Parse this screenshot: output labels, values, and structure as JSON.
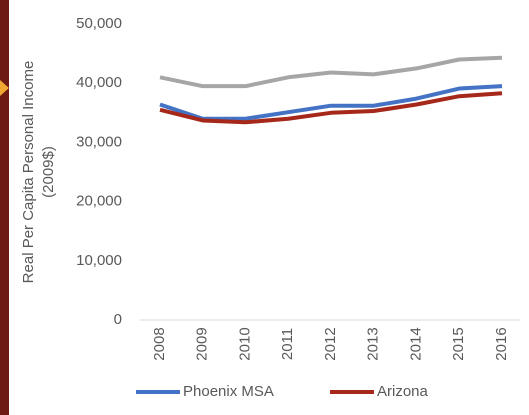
{
  "chart_data": {
    "type": "line",
    "y_label": "Real Per Capita Personal Income (2009$)",
    "x": [
      "2008",
      "2009",
      "2010",
      "2011",
      "2012",
      "2013",
      "2014",
      "2015",
      "2016"
    ],
    "series": [
      {
        "color": "#a6a6a6",
        "values": [
          41000,
          39500,
          39500,
          41000,
          41800,
          41500,
          42500,
          44000,
          44300
        ]
      },
      {
        "name": "Phoenix MSA",
        "color": "#4472c4",
        "values": [
          36400,
          34000,
          34000,
          35100,
          36200,
          36200,
          37400,
          39100,
          39500
        ]
      },
      {
        "name": "Arizona",
        "color": "#a5281b",
        "values": [
          35500,
          33700,
          33400,
          34000,
          35000,
          35300,
          36400,
          37800,
          38300
        ]
      }
    ],
    "ylim": [
      0,
      50000
    ],
    "yticks": [
      0,
      {
        "value": 10000,
        "label": "10,000"
      },
      {
        "value": 20000,
        "label": "20,000"
      },
      {
        "value": 30000,
        "label": "30,000"
      },
      {
        "value": 40000,
        "label": "40,000"
      },
      {
        "value": 50000,
        "label": "50,000"
      }
    ],
    "legend": "bottom"
  }
}
